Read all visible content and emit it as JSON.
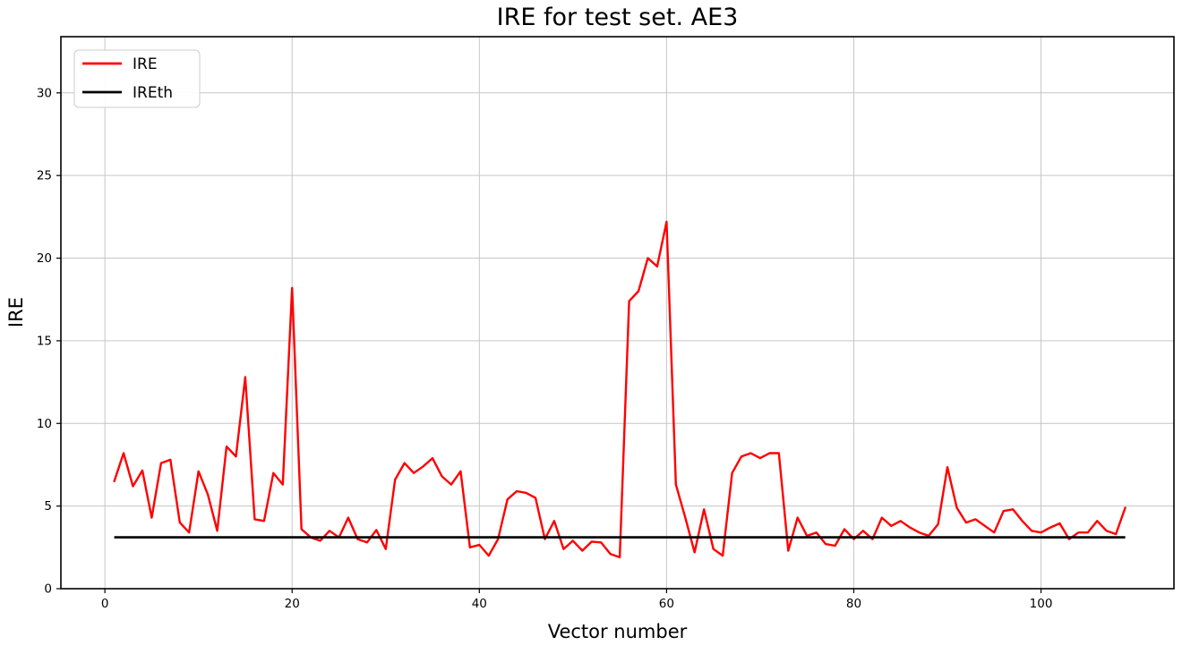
{
  "figure": {
    "background": "#ffffff"
  },
  "chart_data": {
    "type": "line",
    "title": "IRE for test set. AE3",
    "xlabel": "Vector number",
    "ylabel": "IRE",
    "x_ticks": [
      0,
      20,
      40,
      60,
      80,
      100
    ],
    "y_ticks": [
      0,
      5,
      10,
      15,
      20,
      25,
      30
    ],
    "xlim": [
      -4.7,
      114.2
    ],
    "ylim": [
      0,
      33.4
    ],
    "grid": true,
    "grid_color": "#c6c6c6",
    "axis_color": "#000000",
    "tick_label_size": 13.5,
    "legend": {
      "position": "upper left",
      "entries": [
        "IRE",
        "IREth"
      ]
    },
    "x_start": 1,
    "series": [
      {
        "name": "IRE",
        "color": "#ff0000",
        "line_width": 2.4,
        "values": [
          6.5,
          8.2,
          6.2,
          7.15,
          4.3,
          7.6,
          7.8,
          4.0,
          3.4,
          7.1,
          5.7,
          3.5,
          8.6,
          8.0,
          12.8,
          4.2,
          4.1,
          7.0,
          6.3,
          18.2,
          3.6,
          3.1,
          2.9,
          3.5,
          3.1,
          4.3,
          3.0,
          2.8,
          3.55,
          2.4,
          6.6,
          7.6,
          7.0,
          7.4,
          7.9,
          6.8,
          6.3,
          7.1,
          2.5,
          2.65,
          2.0,
          3.0,
          5.4,
          5.9,
          5.8,
          5.5,
          3.0,
          4.1,
          2.4,
          2.9,
          2.3,
          2.85,
          2.8,
          2.1,
          1.9,
          17.4,
          18.0,
          20.0,
          19.5,
          22.2,
          6.3,
          4.3,
          2.2,
          4.8,
          2.4,
          2.0,
          7.0,
          8.0,
          8.2,
          7.9,
          8.2,
          8.2,
          2.3,
          4.3,
          3.2,
          3.4,
          2.7,
          2.6,
          3.6,
          3.0,
          3.5,
          3.0,
          4.3,
          3.8,
          4.1,
          3.7,
          3.4,
          3.2,
          3.9,
          7.35,
          4.9,
          4.0,
          4.2,
          3.8,
          3.4,
          4.7,
          4.8,
          4.1,
          3.5,
          3.4,
          3.7,
          3.95,
          3.0,
          3.4,
          3.4,
          4.1,
          3.5,
          3.3,
          4.9
        ]
      },
      {
        "name": "IREth",
        "color": "#000000",
        "line_width": 2.6,
        "constant": 3.11,
        "x_range": [
          1,
          109
        ]
      }
    ]
  }
}
